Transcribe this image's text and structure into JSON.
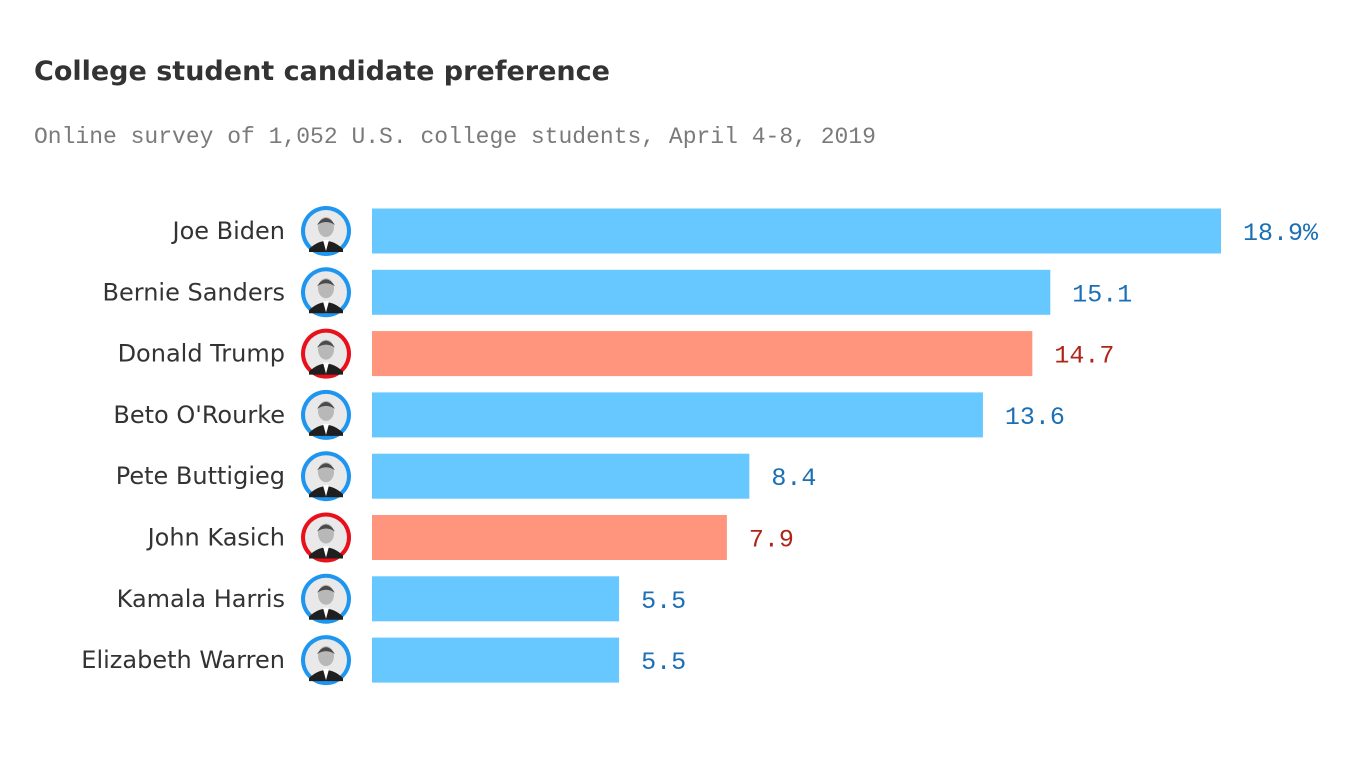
{
  "title": "College student candidate preference",
  "subtitle": "Online survey of 1,052 U.S. college students, April 4-8, 2019",
  "colors": {
    "dem_bar": "#66c8ff",
    "rep_bar": "#ff957c",
    "dem_label": "#1a6fb5",
    "rep_label": "#b02418",
    "dem_ring": "#1e96f0",
    "rep_ring": "#e8101a"
  },
  "chart_data": {
    "type": "bar",
    "orientation": "horizontal",
    "title": "College student candidate preference",
    "subtitle": "Online survey of 1,052 U.S. college students, April 4-8, 2019",
    "unit": "%",
    "xlim": [
      0,
      18.9
    ],
    "categories": [
      "Joe Biden",
      "Bernie Sanders",
      "Donald Trump",
      "Beto O'Rourke",
      "Pete Buttigieg",
      "John Kasich",
      "Kamala Harris",
      "Elizabeth Warren"
    ],
    "values": [
      18.9,
      15.1,
      14.7,
      13.6,
      8.4,
      7.9,
      5.5,
      5.5
    ],
    "value_labels": [
      "18.9%",
      "15.1",
      "14.7",
      "13.6",
      "8.4",
      "7.9",
      "5.5",
      "5.5"
    ],
    "party": [
      "dem",
      "dem",
      "rep",
      "dem",
      "dem",
      "rep",
      "dem",
      "dem"
    ],
    "icons": [
      "candidate-portrait-icon",
      "candidate-portrait-icon",
      "candidate-portrait-icon",
      "candidate-portrait-icon",
      "candidate-portrait-icon",
      "candidate-portrait-icon",
      "candidate-portrait-icon",
      "candidate-portrait-icon"
    ]
  }
}
